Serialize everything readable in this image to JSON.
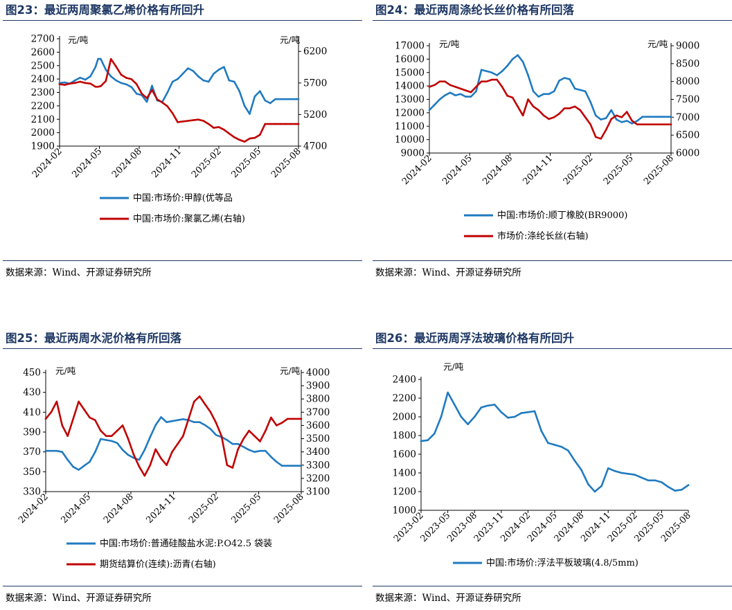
{
  "source_label": "数据来源：Wind、开源证券研究所",
  "colors": {
    "blue": "#1F7AC0",
    "red": "#C00000",
    "title": "#1F3864"
  },
  "chart_data": [
    {
      "id": "fig23",
      "type": "line",
      "title": "图23：最近两周聚氯乙烯价格有所回升",
      "y_unit_left": "元/吨",
      "y_unit_right": "元/吨",
      "x_ticks": [
        "2024-02",
        "2024-05",
        "2024-08",
        "2024-11",
        "2025-02",
        "2025-05",
        "2025-08"
      ],
      "ylim_left": [
        1900,
        2700
      ],
      "yticks_left": [
        1900,
        2000,
        2100,
        2200,
        2300,
        2400,
        2500,
        2600,
        2700
      ],
      "ylim_right": [
        4700,
        6400
      ],
      "yticks_right": [
        4700,
        5200,
        5700,
        6200
      ],
      "x": [
        0,
        4,
        8,
        12,
        16,
        20,
        24,
        28,
        30,
        32,
        36,
        40,
        44,
        48,
        52,
        56,
        60,
        64,
        68,
        72,
        76,
        80,
        84,
        88,
        92,
        96,
        100,
        104,
        108,
        112,
        116,
        120,
        124,
        128,
        132,
        136,
        140,
        144,
        148,
        152,
        156,
        160,
        164,
        168,
        172,
        176,
        180,
        184,
        186
      ],
      "series": [
        {
          "name": "中国:市场价:甲醇(优等品",
          "axis": "left",
          "color": "#1F7AC0",
          "values": [
            2370,
            2375,
            2365,
            2390,
            2410,
            2395,
            2420,
            2490,
            2550,
            2550,
            2470,
            2420,
            2390,
            2370,
            2360,
            2340,
            2290,
            2280,
            2230,
            2350,
            2240,
            2230,
            2300,
            2380,
            2400,
            2440,
            2480,
            2460,
            2420,
            2390,
            2380,
            2440,
            2470,
            2490,
            2390,
            2380,
            2310,
            2200,
            2140,
            2270,
            2310,
            2240,
            2220,
            2250,
            2250,
            2250,
            2250,
            2250,
            2250
          ]
        },
        {
          "name": "中国:市场价:聚氯乙烯(右轴)",
          "axis": "right",
          "color": "#C00000",
          "values": [
            5680,
            5670,
            5690,
            5700,
            5720,
            5700,
            5690,
            5640,
            5640,
            5650,
            5730,
            6080,
            5960,
            5830,
            5780,
            5760,
            5680,
            5530,
            5460,
            5590,
            5440,
            5390,
            5330,
            5220,
            5080,
            5090,
            5100,
            5110,
            5120,
            5100,
            5050,
            4990,
            5000,
            4960,
            4900,
            4840,
            4800,
            4770,
            4820,
            4830,
            4880,
            5050,
            5050,
            5050,
            5050,
            5050,
            5050,
            5050,
            5050
          ]
        }
      ]
    },
    {
      "id": "fig24",
      "type": "line",
      "title": "图24：最近两周涤纶长丝价格有所回落",
      "y_unit_left": "元/吨",
      "y_unit_right": "元/吨",
      "x_ticks": [
        "2024-02",
        "2024-05",
        "2024-08",
        "2024-11",
        "2025-02",
        "2025-05",
        "2025-08"
      ],
      "ylim_left": [
        9000,
        17000
      ],
      "yticks_left": [
        9000,
        10000,
        11000,
        12000,
        13000,
        14000,
        15000,
        16000,
        17000
      ],
      "ylim_right": [
        6000,
        9000
      ],
      "yticks_right": [
        6000,
        6500,
        7000,
        7500,
        8000,
        8500,
        9000
      ],
      "x": [
        0,
        4,
        8,
        12,
        16,
        20,
        24,
        28,
        32,
        36,
        40,
        44,
        48,
        52,
        56,
        60,
        64,
        68,
        72,
        76,
        80,
        84,
        88,
        92,
        96,
        100,
        104,
        108,
        112,
        116,
        120,
        124,
        128,
        132,
        136,
        140,
        144,
        148,
        152,
        156,
        160,
        164,
        168,
        172,
        176,
        180,
        184,
        186
      ],
      "series": [
        {
          "name": "中国:市场价:顺丁橡胶(BR9000)",
          "axis": "left",
          "color": "#1F7AC0",
          "values": [
            12200,
            12600,
            13000,
            13300,
            13500,
            13300,
            13400,
            13200,
            13200,
            13600,
            15200,
            15100,
            15000,
            14800,
            15100,
            15500,
            16000,
            16300,
            15800,
            14800,
            13600,
            13200,
            13400,
            13400,
            13600,
            14400,
            14600,
            14500,
            13800,
            13700,
            13600,
            12800,
            11800,
            11500,
            11600,
            12200,
            11500,
            11300,
            11400,
            11200,
            11400,
            11700,
            11700,
            11700,
            11700,
            11700,
            11700,
            11700
          ]
        },
        {
          "name": "市场价:涤纶长丝(右轴)",
          "axis": "right",
          "color": "#C00000",
          "values": [
            7850,
            7900,
            8000,
            8000,
            7900,
            7850,
            7800,
            7750,
            7700,
            7850,
            8000,
            8000,
            8050,
            8050,
            7850,
            7600,
            7550,
            7300,
            7050,
            7500,
            7300,
            7200,
            7050,
            6950,
            7000,
            7100,
            7250,
            7250,
            7300,
            7200,
            7000,
            6800,
            6450,
            6400,
            6650,
            6950,
            7050,
            7000,
            7150,
            6900,
            6800,
            6800,
            6800,
            6800,
            6800,
            6800,
            6800,
            6800
          ]
        }
      ]
    },
    {
      "id": "fig25",
      "type": "line",
      "title": "图25：最近两周水泥价格有所回落",
      "y_unit_left": "元/吨",
      "y_unit_right": "元/吨",
      "x_ticks": [
        "2024-02",
        "2024-05",
        "2024-08",
        "2024-11",
        "2025-02",
        "2025-05",
        "2025-08"
      ],
      "ylim_left": [
        330,
        450
      ],
      "yticks_left": [
        330,
        350,
        370,
        390,
        410,
        430,
        450
      ],
      "ylim_right": [
        3100,
        4000
      ],
      "yticks_right": [
        3100,
        3200,
        3300,
        3400,
        3500,
        3600,
        3700,
        3800,
        3900,
        4000
      ],
      "x": [
        0,
        4,
        8,
        12,
        16,
        20,
        24,
        28,
        32,
        36,
        40,
        44,
        48,
        52,
        56,
        60,
        64,
        68,
        72,
        76,
        80,
        84,
        88,
        92,
        96,
        100,
        104,
        108,
        112,
        116,
        120,
        124,
        128,
        132,
        136,
        140,
        144,
        148,
        152,
        156,
        160,
        164,
        168,
        172,
        176,
        180,
        184,
        186
      ],
      "series": [
        {
          "name": "中国:市场价:普通硅酸盐水泥:P.O42.5 袋装",
          "axis": "left",
          "color": "#1F7AC0",
          "values": [
            371,
            371,
            371,
            370,
            362,
            355,
            352,
            356,
            360,
            370,
            383,
            382,
            381,
            379,
            372,
            367,
            364,
            362,
            372,
            385,
            397,
            405,
            400,
            401,
            402,
            403,
            402,
            400,
            400,
            397,
            393,
            387,
            385,
            382,
            378,
            378,
            375,
            372,
            370,
            371,
            371,
            365,
            360,
            356,
            356,
            356,
            356,
            356
          ]
        },
        {
          "name": "期货结算价(连续):沥青(右轴)",
          "axis": "right",
          "color": "#C00000",
          "values": [
            3650,
            3700,
            3780,
            3600,
            3520,
            3650,
            3780,
            3720,
            3660,
            3640,
            3560,
            3520,
            3520,
            3560,
            3600,
            3500,
            3380,
            3290,
            3220,
            3300,
            3420,
            3350,
            3300,
            3400,
            3460,
            3520,
            3650,
            3780,
            3820,
            3760,
            3700,
            3620,
            3520,
            3300,
            3280,
            3420,
            3500,
            3560,
            3520,
            3480,
            3560,
            3660,
            3600,
            3620,
            3650,
            3650,
            3650,
            3650
          ]
        }
      ]
    },
    {
      "id": "fig26",
      "type": "line",
      "title": "图26：最近两周浮法玻璃价格有所回升",
      "y_unit_left": "元/吨",
      "x_ticks": [
        "2023-02",
        "2023-05",
        "2023-08",
        "2023-11",
        "2024-02",
        "2024-05",
        "2024-08",
        "2024-11",
        "2025-02",
        "2025-05",
        "2025-08"
      ],
      "ylim_left": [
        1000,
        2400
      ],
      "yticks_left": [
        1000,
        1200,
        1400,
        1600,
        1800,
        2000,
        2200,
        2400
      ],
      "x": [
        0,
        3,
        6,
        9,
        12,
        15,
        18,
        21,
        24,
        27,
        30,
        33,
        36,
        39,
        42,
        45,
        48,
        51,
        54,
        57,
        60,
        63,
        66,
        69,
        72,
        75,
        78,
        81,
        84,
        87,
        90,
        93,
        96,
        99,
        102,
        105,
        108,
        111,
        114,
        117,
        120
      ],
      "series": [
        {
          "name": "中国:市场价:浮法平板玻璃(4.8/5mm)",
          "axis": "left",
          "color": "#1F7AC0",
          "values": [
            1740,
            1750,
            1820,
            2000,
            2260,
            2130,
            2000,
            1920,
            2000,
            2100,
            2120,
            2130,
            2050,
            1990,
            2000,
            2040,
            2050,
            2060,
            1850,
            1720,
            1700,
            1680,
            1640,
            1530,
            1430,
            1280,
            1200,
            1260,
            1450,
            1420,
            1400,
            1390,
            1380,
            1350,
            1320,
            1320,
            1300,
            1250,
            1210,
            1220,
            1270
          ]
        }
      ]
    }
  ]
}
